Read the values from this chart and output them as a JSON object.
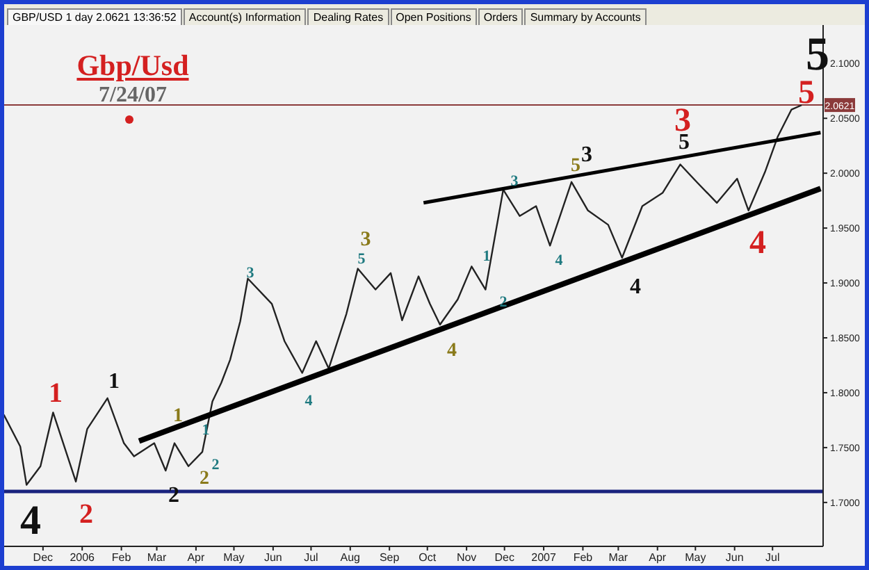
{
  "chart_data": {
    "type": "line",
    "title": "Gbp/Usd",
    "subtitle": "7/24/07",
    "annotations": [
      "GBP/USD 1 day 2.0621 13:36:52",
      "Account(s) Information",
      "Dealing Rates",
      "Open Positions",
      "Orders",
      "Summary by Accounts",
      "4",
      "1",
      "2",
      "1",
      "1",
      "2",
      "1",
      "2",
      "2",
      "3",
      "4",
      "3",
      "5",
      "4",
      "1",
      "2",
      "3",
      "4",
      "5",
      "3",
      "4",
      "3",
      "5",
      "4",
      "5",
      "5"
    ],
    "xlim": [
      "2005-10-28",
      "2007-08-10"
    ],
    "xticks": [
      {
        "value": "2005-12-01",
        "label": "Dec"
      },
      {
        "value": "2006-01-01",
        "label": "2006"
      },
      {
        "value": "2006-02-01",
        "label": "Feb"
      },
      {
        "value": "2006-03-01",
        "label": "Mar"
      },
      {
        "value": "2006-04-01",
        "label": "Apr"
      },
      {
        "value": "2006-05-01",
        "label": "May"
      },
      {
        "value": "2006-06-01",
        "label": "Jun"
      },
      {
        "value": "2006-07-01",
        "label": "Jul"
      },
      {
        "value": "2006-08-01",
        "label": "Aug"
      },
      {
        "value": "2006-09-01",
        "label": "Sep"
      },
      {
        "value": "2006-10-01",
        "label": "Oct"
      },
      {
        "value": "2006-11-01",
        "label": "Nov"
      },
      {
        "value": "2006-12-01",
        "label": "Dec"
      },
      {
        "value": "2007-01-01",
        "label": "2007"
      },
      {
        "value": "2007-02-01",
        "label": "Feb"
      },
      {
        "value": "2007-03-01",
        "label": "Mar"
      },
      {
        "value": "2007-04-01",
        "label": "Apr"
      },
      {
        "value": "2007-05-01",
        "label": "May"
      },
      {
        "value": "2007-06-01",
        "label": "Jun"
      },
      {
        "value": "2007-07-01",
        "label": "Jul"
      }
    ],
    "ylim": [
      1.66,
      2.135
    ],
    "yticks": [
      {
        "value": 1.7,
        "label": "1.7000"
      },
      {
        "value": 1.75,
        "label": "1.7500"
      },
      {
        "value": 1.8,
        "label": "1.8000"
      },
      {
        "value": 1.85,
        "label": "1.8500"
      },
      {
        "value": 1.9,
        "label": "1.9000"
      },
      {
        "value": 1.95,
        "label": "1.9500"
      },
      {
        "value": 2.0,
        "label": "2.0000"
      },
      {
        "value": 2.05,
        "label": "2.0500"
      },
      {
        "value": 2.1,
        "label": "2.1000"
      }
    ],
    "ref_lines": [
      {
        "axis": "y",
        "value": 1.71,
        "color": "#1a237e"
      },
      {
        "axis": "y",
        "value": 2.0621,
        "label": "2.0621",
        "color": "#8b3a3a"
      }
    ],
    "marker": "none",
    "series": [
      {
        "color": "#222222",
        "x": [
          "2005-10-31",
          "2005-11-13",
          "2005-11-18",
          "2005-11-29",
          "2005-12-09",
          "2005-12-27",
          "2006-01-05",
          "2006-01-21",
          "2006-02-03",
          "2006-02-11",
          "2006-02-27",
          "2006-03-08",
          "2006-03-15",
          "2006-03-26",
          "2006-04-06",
          "2006-04-14",
          "2006-04-21",
          "2006-04-28",
          "2006-05-06",
          "2006-05-12",
          "2006-05-31",
          "2006-06-10",
          "2006-06-24",
          "2006-07-05",
          "2006-07-15",
          "2006-07-29",
          "2006-08-07",
          "2006-08-21",
          "2006-09-02",
          "2006-09-11",
          "2006-09-24",
          "2006-10-03",
          "2006-10-11",
          "2006-10-25",
          "2006-11-05",
          "2006-11-16",
          "2006-11-30",
          "2006-12-13",
          "2006-12-26",
          "2007-01-06",
          "2007-01-23",
          "2007-02-05",
          "2007-02-21",
          "2007-03-04",
          "2007-03-20",
          "2007-04-05",
          "2007-04-19",
          "2007-05-02",
          "2007-05-18",
          "2007-06-03",
          "2007-06-12",
          "2007-06-25",
          "2007-07-05",
          "2007-07-16",
          "2007-07-24"
        ],
        "values": [
          1.78,
          1.751,
          1.716,
          1.733,
          1.782,
          1.719,
          1.767,
          1.795,
          1.754,
          1.742,
          1.754,
          1.729,
          1.754,
          1.733,
          1.746,
          1.792,
          1.809,
          1.83,
          1.865,
          1.904,
          1.881,
          1.847,
          1.818,
          1.847,
          1.822,
          1.872,
          1.913,
          1.894,
          1.909,
          1.866,
          1.906,
          1.881,
          1.862,
          1.885,
          1.915,
          1.894,
          1.985,
          1.961,
          1.97,
          1.934,
          1.992,
          1.966,
          1.953,
          1.923,
          1.97,
          1.982,
          2.008,
          1.992,
          1.973,
          1.995,
          1.966,
          2.001,
          2.033,
          2.058,
          2.062
        ]
      },
      {
        "type": "line",
        "color": "#000000",
        "x": [
          "2006-02-15",
          "2007-08-08"
        ],
        "values": [
          1.756,
          1.986
        ]
      },
      {
        "type": "line",
        "color": "#000000",
        "x": [
          "2006-09-28",
          "2007-08-08"
        ],
        "values": [
          1.973,
          2.037
        ]
      }
    ]
  }
}
